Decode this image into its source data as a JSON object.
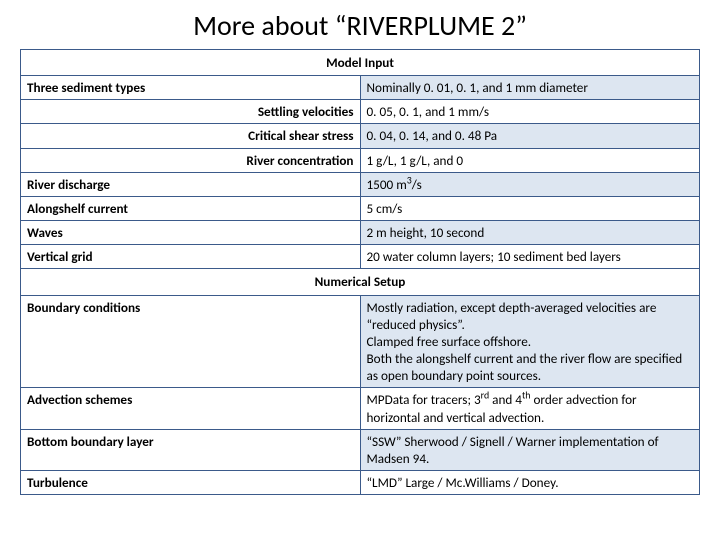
{
  "title": "More about “RIVERPLUME 2”",
  "section1_header": "Model Input",
  "rows1": [
    {
      "label": "Three sediment types",
      "value": "Nominally 0. 01, 0. 1, and 1 mm diameter",
      "align": "left"
    },
    {
      "label": "Settling velocities",
      "value": "0. 05, 0. 1, and 1 mm/s",
      "align": "right"
    },
    {
      "label": "Critical shear stress",
      "value": "0. 04, 0. 14, and 0. 48 Pa",
      "align": "right"
    },
    {
      "label": "River concentration",
      "value": "1 g/L, 1 g/L, and 0",
      "align": "right"
    },
    {
      "label": "River discharge",
      "value_html": "1500 m<span class=\"sup\">3</span>/s",
      "align": "left"
    },
    {
      "label": "Alongshelf current",
      "value": "5 cm/s",
      "align": "left"
    },
    {
      "label": "Waves",
      "value": "2 m height, 10 second",
      "align": "left"
    },
    {
      "label": "Vertical grid",
      "value": "20 water column layers; 10 sediment bed layers",
      "align": "left"
    }
  ],
  "section2_header": "Numerical Setup",
  "rows2": [
    {
      "label": "Boundary conditions",
      "value": "Mostly radiation, except depth-averaged velocities are “reduced physics”.\nClamped free surface offshore.\nBoth the alongshelf current and the river flow are specified as open boundary point sources.",
      "align": "left"
    },
    {
      "label": "Advection schemes",
      "value_html": "MPData for tracers; 3<span class=\"sup\">rd</span> and 4<span class=\"sup\">th</span> order advection for horizontal and vertical advection.",
      "align": "left"
    },
    {
      "label": "Bottom boundary layer",
      "value": "“SSW” Sherwood / Signell / Warner implementation of Madsen 94.",
      "align": "left"
    },
    {
      "label": "Turbulence",
      "value": "“LMD” Large / Mc.Williams / Doney.",
      "align": "left"
    }
  ],
  "colors": {
    "border": "#3b5a8a",
    "band": "#dde6f1",
    "bg": "#ffffff",
    "text": "#000000"
  },
  "fonts": {
    "title_size": 28,
    "body_size": 13.2
  }
}
